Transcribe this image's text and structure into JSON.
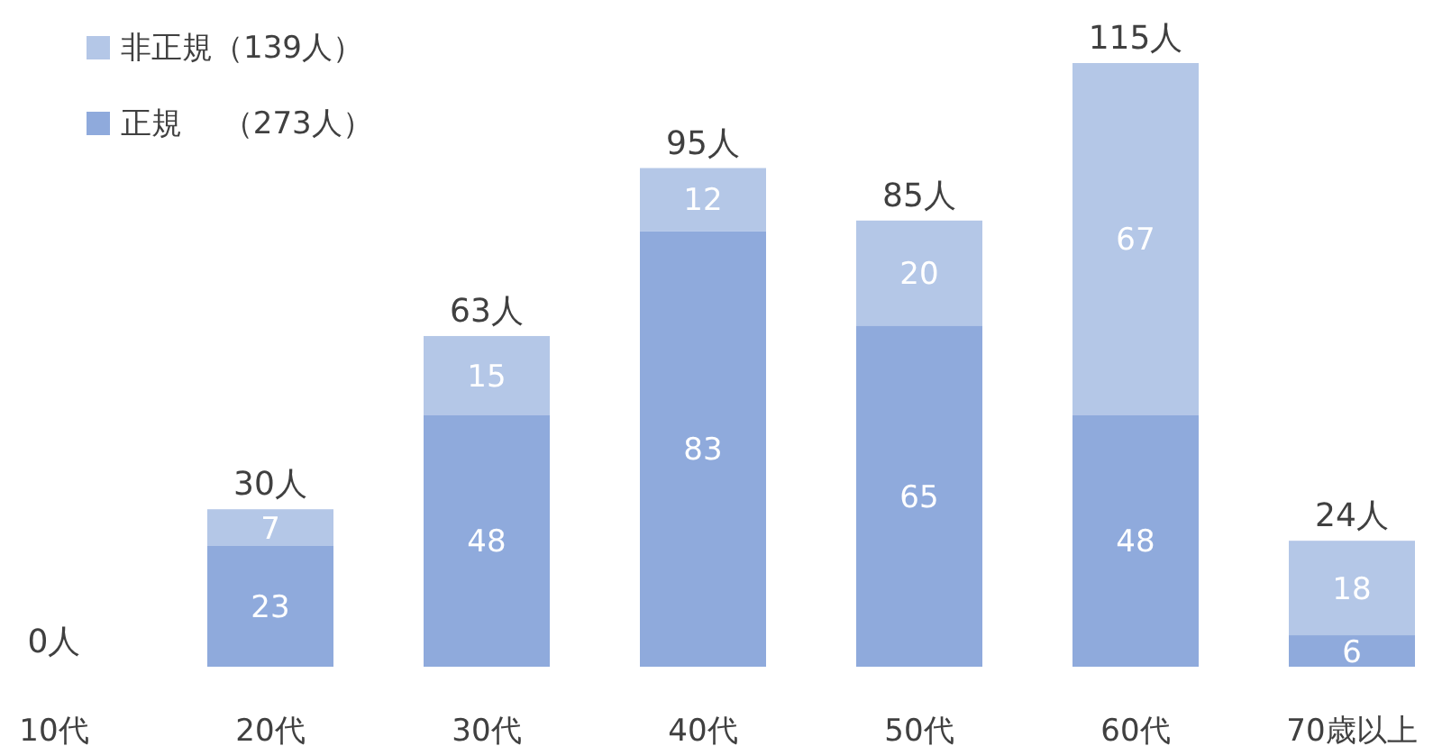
{
  "chart_data": {
    "type": "bar",
    "stacked": true,
    "legend": "top left",
    "categories": [
      "10代",
      "20代",
      "30代",
      "40代",
      "50代",
      "60代",
      "70歳以上"
    ],
    "series": [
      {
        "name": "正規　 （273人）",
        "color": "#8faadc",
        "values": [
          0,
          23,
          48,
          83,
          65,
          48,
          6
        ],
        "value_labels": [
          null,
          "23",
          "48",
          "83",
          "65",
          "48",
          "6"
        ]
      },
      {
        "name": "非正規（139人）",
        "color": "#b4c7e7",
        "values": [
          0,
          7,
          15,
          12,
          20,
          67,
          18
        ],
        "value_labels": [
          null,
          "7",
          "15",
          "12",
          "20",
          "67",
          "18"
        ]
      }
    ],
    "totals": [
      "0人",
      "30人",
      "63人",
      "95人",
      "85人",
      "115人",
      "24人"
    ]
  }
}
